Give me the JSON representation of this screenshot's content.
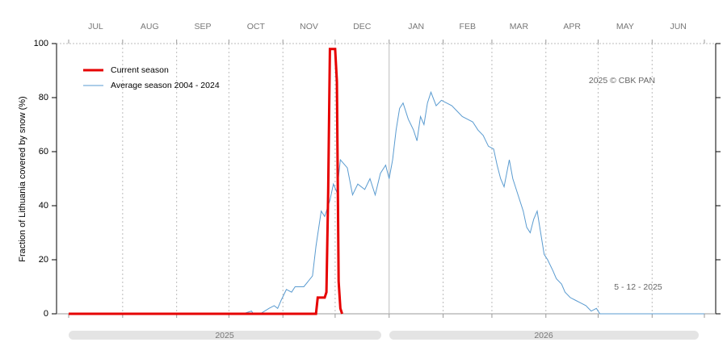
{
  "chart_data": {
    "type": "line",
    "ylabel": "Fraction of  Lithuania  covered by snow (%)",
    "annotation": "2025  © CBK PAN",
    "date_label": "5 - 12 - 2025",
    "month_labels": [
      "JUL",
      "AUG",
      "SEP",
      "OCT",
      "NOV",
      "DEC",
      "JAN",
      "FEB",
      "MAR",
      "APR",
      "MAY",
      "JUN"
    ],
    "years": [
      "2025",
      "2026"
    ],
    "xlim": [
      0,
      365
    ],
    "xticks": [
      0,
      31,
      62,
      92,
      123,
      153,
      184,
      215,
      243,
      274,
      304,
      335,
      365
    ],
    "ylim": [
      0,
      100
    ],
    "yticks": [
      0,
      20,
      40,
      60,
      80,
      100
    ],
    "grid": true,
    "legend": "upper left",
    "series": [
      {
        "name": "Current season",
        "color": "#e60000",
        "x": [
          0,
          142,
          143,
          147,
          148,
          149,
          150,
          153,
          154,
          155,
          156,
          157
        ],
        "values": [
          0,
          0,
          6,
          6,
          8,
          45,
          98,
          98,
          86,
          12,
          2,
          0
        ]
      },
      {
        "name": "Average season 2004 - 2024",
        "color": "#5a9bd0",
        "x": [
          0,
          100,
          105,
          106,
          110,
          115,
          118,
          120,
          122,
          125,
          128,
          130,
          135,
          140,
          142,
          145,
          147,
          150,
          152,
          154,
          156,
          160,
          163,
          166,
          170,
          173,
          176,
          179,
          182,
          184,
          186,
          188,
          190,
          192,
          195,
          198,
          200,
          202,
          204,
          206,
          208,
          211,
          214,
          217,
          220,
          223,
          226,
          229,
          232,
          235,
          238,
          241,
          244,
          246,
          248,
          250,
          253,
          255,
          258,
          261,
          263,
          265,
          267,
          269,
          271,
          273,
          275,
          278,
          280,
          283,
          285,
          288,
          291,
          294,
          297,
          300,
          303,
          305,
          310,
          320,
          340,
          365
        ],
        "values": [
          0,
          0,
          1,
          0,
          0,
          2,
          3,
          2,
          5,
          9,
          8,
          10,
          10,
          14,
          25,
          38,
          36,
          42,
          48,
          45,
          57,
          54,
          44,
          48,
          46,
          50,
          44,
          52,
          55,
          50,
          57,
          68,
          76,
          78,
          72,
          68,
          64,
          73,
          70,
          78,
          82,
          77,
          79,
          78,
          77,
          75,
          73,
          72,
          71,
          68,
          66,
          62,
          61,
          55,
          50,
          47,
          57,
          50,
          44,
          38,
          32,
          30,
          35,
          38,
          30,
          22,
          20,
          16,
          13,
          11,
          8,
          6,
          5,
          4,
          3,
          1,
          2,
          0,
          0,
          0,
          0,
          0
        ]
      }
    ]
  }
}
